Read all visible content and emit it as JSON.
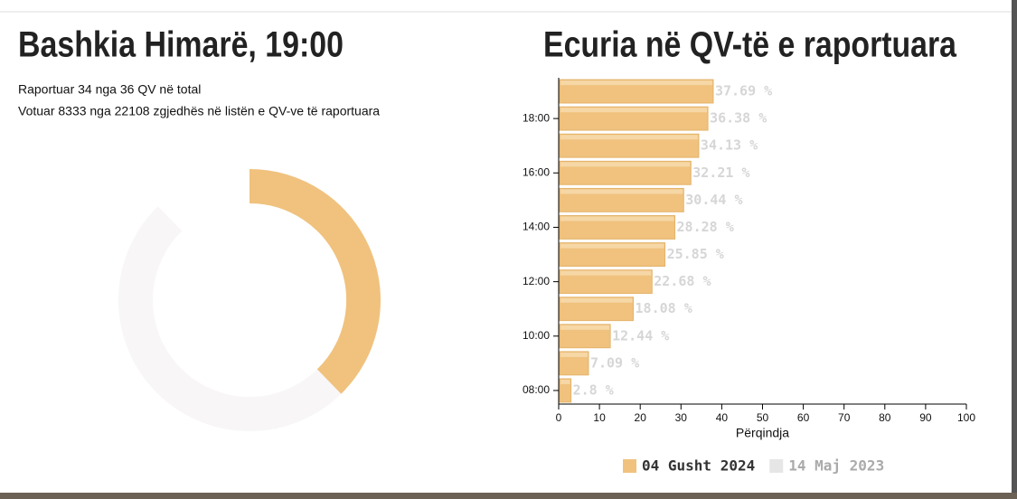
{
  "header": {
    "title": "Bashkia Himarë, 19:00",
    "lines": [
      "Raportuar 34 nga 36 QV në total",
      "Votuar 8333 nga 22108 zgjedhës në listën e QV-ve të raportuara"
    ]
  },
  "chart_data": [
    {
      "type": "donut",
      "values": [
        37.69,
        50
      ],
      "colors": [
        "#f0c27e",
        "#f8f6f7"
      ],
      "lim": [
        0,
        100
      ]
    },
    {
      "type": "hbar",
      "title": "Ecuria në QV-të e raportuara",
      "categories": [
        null,
        "18:00",
        null,
        "16:00",
        null,
        "14:00",
        null,
        "12:00",
        null,
        "10:00",
        null,
        "08:00"
      ],
      "series": [
        {
          "name": "04 Gusht 2024",
          "color": "#f0c27e",
          "values": [
            37.69,
            36.38,
            34.13,
            32.21,
            30.44,
            28.28,
            25.85,
            22.68,
            18.08,
            12.44,
            7.09,
            2.8
          ],
          "value_labels": [
            "37.69 %",
            "36.38 %",
            "34.13 %",
            "32.21 %",
            "30.44 %",
            "28.28 %",
            "25.85 %",
            "22.68 %",
            "18.08 %",
            "12.44 %",
            "7.09 %",
            "2.8 %"
          ]
        }
      ],
      "legend": [
        {
          "name": "04 Gusht 2024",
          "color": "#f0c27e"
        },
        {
          "name": "14 Maj 2023",
          "color": "#e6e6e6"
        }
      ],
      "xlabel": "Përqindja",
      "xlim": [
        0,
        100
      ],
      "xticks": [
        0,
        10,
        20,
        30,
        40,
        50,
        60,
        70,
        80,
        90,
        100
      ]
    }
  ]
}
